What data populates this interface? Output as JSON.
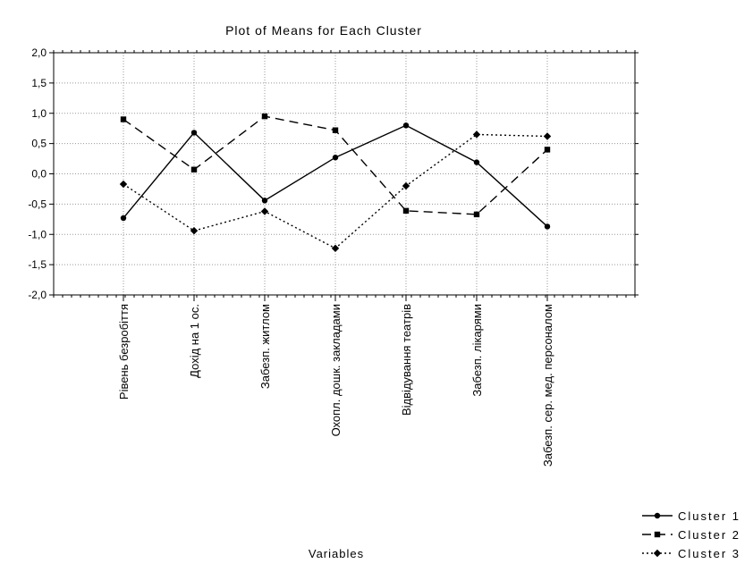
{
  "chart_data": {
    "type": "line",
    "title": "Plot of Means for Each Cluster",
    "xlabel": "Variables",
    "ylabel": "",
    "ylim": [
      -2.0,
      2.0
    ],
    "y_ticks": [
      "2,0",
      "1,5",
      "1,0",
      "0,5",
      "0,0",
      "-0,5",
      "-1,0",
      "-1,5",
      "-2,0"
    ],
    "y_tick_values": [
      2.0,
      1.5,
      1.0,
      0.5,
      0.0,
      -0.5,
      -1.0,
      -1.5,
      -2.0
    ],
    "grid": true,
    "legend_position": "bottom-right",
    "categories": [
      "Рівень безробіття",
      "Дохід на 1 ос.",
      "Забезп. житлом",
      "Охопл. дошк. закладами",
      "Відвідування театрів",
      "Забезп. лікарями",
      "Забезп. сер. мед. персоналом"
    ],
    "series": [
      {
        "name": "Cluster  1",
        "marker": "circle",
        "dash": "solid",
        "values": [
          -0.73,
          0.68,
          -0.44,
          0.27,
          0.8,
          0.19,
          -0.87
        ]
      },
      {
        "name": "Cluster  2",
        "marker": "square",
        "dash": "dashed",
        "values": [
          0.9,
          0.07,
          0.95,
          0.72,
          -0.61,
          -0.67,
          0.4
        ]
      },
      {
        "name": "Cluster  3",
        "marker": "diamond",
        "dash": "dotted",
        "values": [
          -0.17,
          -0.94,
          -0.62,
          -1.23,
          -0.2,
          0.65,
          0.62
        ]
      }
    ]
  }
}
